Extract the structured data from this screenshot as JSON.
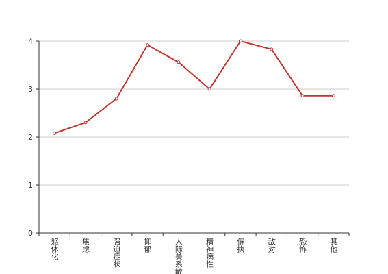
{
  "chart_data": {
    "type": "line",
    "categories": [
      "躯体化",
      "焦虑",
      "强迫症状",
      "抑郁",
      "人际关系敏感",
      "精神病性",
      "偏执",
      "敌对",
      "恐怖",
      "其他"
    ],
    "series": [
      {
        "color": "#c23531",
        "values": [
          2.08,
          2.3,
          2.8,
          3.92,
          3.56,
          3.0,
          4.0,
          3.83,
          2.86,
          2.86
        ]
      }
    ],
    "ylim": [
      0,
      4
    ],
    "yticks": [
      0,
      1,
      2,
      3,
      4
    ],
    "grid": true
  }
}
